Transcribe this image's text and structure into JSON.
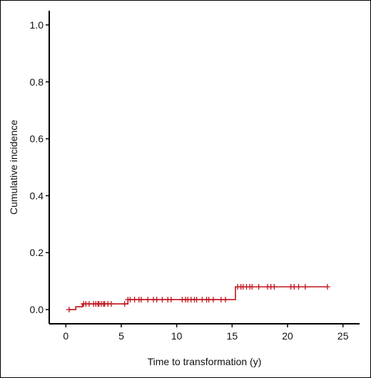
{
  "chart_data": {
    "type": "line",
    "title": "",
    "xlabel": "Time to transformation (y)",
    "ylabel": "Cumulative incidence",
    "xlim": [
      -1.5,
      26.5
    ],
    "ylim": [
      -0.05,
      1.05
    ],
    "xticks": [
      0,
      5,
      10,
      15,
      20,
      25
    ],
    "xtick_labels": [
      "0",
      "5",
      "10",
      "15",
      "20",
      "25"
    ],
    "yticks": [
      0.0,
      0.2,
      0.4,
      0.6,
      0.8,
      1.0
    ],
    "ytick_labels": [
      "0.0",
      "0.2",
      "0.4",
      "0.6",
      "0.8",
      "1.0"
    ],
    "grid": false,
    "legend": "none",
    "series": [
      {
        "color": "#c0141c",
        "step": {
          "x": [
            0.3,
            0.9,
            1.5,
            5.6,
            15.3,
            23.6
          ],
          "y": [
            0.0,
            0.01,
            0.02,
            0.035,
            0.08,
            0.08
          ]
        },
        "censor": {
          "x": [
            0.3,
            1.6,
            1.8,
            2.1,
            2.5,
            2.7,
            2.9,
            3.0,
            3.2,
            3.4,
            3.5,
            3.8,
            4.1,
            5.3,
            5.6,
            5.8,
            6.2,
            6.6,
            6.8,
            7.4,
            7.9,
            8.2,
            8.7,
            9.2,
            9.5,
            10.5,
            10.8,
            11.0,
            11.3,
            11.6,
            11.8,
            12.3,
            12.7,
            12.9,
            13.3,
            14.0,
            14.4,
            15.5,
            15.8,
            16.0,
            16.3,
            16.6,
            16.8,
            17.4,
            18.2,
            18.5,
            18.8,
            20.3,
            20.6,
            21.0,
            21.6,
            23.6
          ],
          "y": [
            0.0,
            0.02,
            0.02,
            0.02,
            0.02,
            0.02,
            0.02,
            0.02,
            0.02,
            0.02,
            0.02,
            0.02,
            0.02,
            0.02,
            0.035,
            0.035,
            0.035,
            0.035,
            0.035,
            0.035,
            0.035,
            0.035,
            0.035,
            0.035,
            0.035,
            0.035,
            0.035,
            0.035,
            0.035,
            0.035,
            0.035,
            0.035,
            0.035,
            0.035,
            0.035,
            0.035,
            0.035,
            0.08,
            0.08,
            0.08,
            0.08,
            0.08,
            0.08,
            0.08,
            0.08,
            0.08,
            0.08,
            0.08,
            0.08,
            0.08,
            0.08,
            0.08
          ]
        }
      }
    ]
  }
}
